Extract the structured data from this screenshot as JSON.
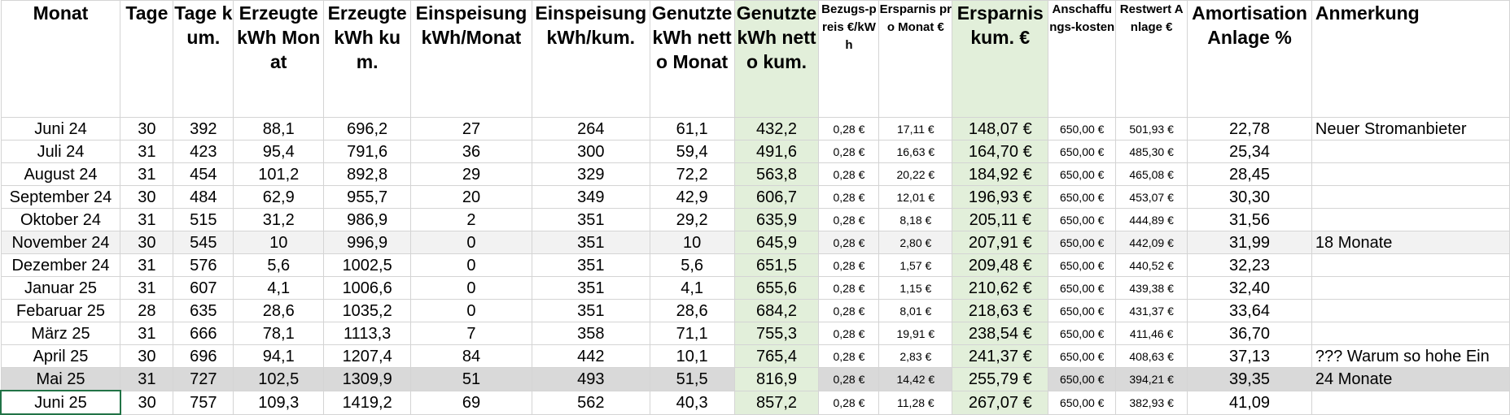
{
  "headers": [
    {
      "label": "Monat",
      "cls": ""
    },
    {
      "label": "Tage",
      "cls": ""
    },
    {
      "label": "Tage kum.",
      "cls": ""
    },
    {
      "label": "Erzeugte kWh Monat",
      "cls": ""
    },
    {
      "label": "Erzeugte kWh kum.",
      "cls": ""
    },
    {
      "label": "Einspeisung kWh/Monat",
      "cls": ""
    },
    {
      "label": "Einspeisung kWh/kum.",
      "cls": ""
    },
    {
      "label": "Genutzte kWh netto Monat",
      "cls": ""
    },
    {
      "label": "Genutzte kWh netto kum.",
      "cls": "green"
    },
    {
      "label": "Bezugs-preis €/kWh",
      "cls": "small"
    },
    {
      "label": "Ersparnis pro Monat €",
      "cls": "small"
    },
    {
      "label": "Ersparnis kum. €",
      "cls": "green"
    },
    {
      "label": "Anschaffungs-kosten",
      "cls": "small"
    },
    {
      "label": "Restwert Anlage €",
      "cls": "small"
    },
    {
      "label": "Amortisation Anlage %",
      "cls": ""
    },
    {
      "label": "Anmerkung",
      "cls": "left"
    }
  ],
  "rows": [
    [
      "Juni 24",
      "30",
      "392",
      "88,1",
      "696,2",
      "27",
      "264",
      "61,1",
      "432,2",
      "0,28 €",
      "17,11 €",
      "148,07 €",
      "650,00 €",
      "501,93 €",
      "22,78",
      "Neuer Stromanbieter"
    ],
    [
      "Juli 24",
      "31",
      "423",
      "95,4",
      "791,6",
      "36",
      "300",
      "59,4",
      "491,6",
      "0,28 €",
      "16,63 €",
      "164,70 €",
      "650,00 €",
      "485,30 €",
      "25,34",
      ""
    ],
    [
      "August 24",
      "31",
      "454",
      "101,2",
      "892,8",
      "29",
      "329",
      "72,2",
      "563,8",
      "0,28 €",
      "20,22 €",
      "184,92 €",
      "650,00 €",
      "465,08 €",
      "28,45",
      ""
    ],
    [
      "September 24",
      "30",
      "484",
      "62,9",
      "955,7",
      "20",
      "349",
      "42,9",
      "606,7",
      "0,28 €",
      "12,01 €",
      "196,93 €",
      "650,00 €",
      "453,07 €",
      "30,30",
      ""
    ],
    [
      "Oktober 24",
      "31",
      "515",
      "31,2",
      "986,9",
      "2",
      "351",
      "29,2",
      "635,9",
      "0,28 €",
      "8,18 €",
      "205,11 €",
      "650,00 €",
      "444,89 €",
      "31,56",
      ""
    ],
    [
      "November 24",
      "30",
      "545",
      "10",
      "996,9",
      "0",
      "351",
      "10",
      "645,9",
      "0,28 €",
      "2,80 €",
      "207,91 €",
      "650,00 €",
      "442,09 €",
      "31,99",
      "18 Monate"
    ],
    [
      "Dezember 24",
      "31",
      "576",
      "5,6",
      "1002,5",
      "0",
      "351",
      "5,6",
      "651,5",
      "0,28 €",
      "1,57 €",
      "209,48 €",
      "650,00 €",
      "440,52 €",
      "32,23",
      ""
    ],
    [
      "Januar 25",
      "31",
      "607",
      "4,1",
      "1006,6",
      "0",
      "351",
      "4,1",
      "655,6",
      "0,28 €",
      "1,15 €",
      "210,62 €",
      "650,00 €",
      "439,38 €",
      "32,40",
      ""
    ],
    [
      "Febaruar 25",
      "28",
      "635",
      "28,6",
      "1035,2",
      "0",
      "351",
      "28,6",
      "684,2",
      "0,28 €",
      "8,01 €",
      "218,63 €",
      "650,00 €",
      "431,37 €",
      "33,64",
      ""
    ],
    [
      "März 25",
      "31",
      "666",
      "78,1",
      "1113,3",
      "7",
      "358",
      "71,1",
      "755,3",
      "0,28 €",
      "19,91 €",
      "238,54 €",
      "650,00 €",
      "411,46 €",
      "36,70",
      ""
    ],
    [
      "April 25",
      "30",
      "696",
      "94,1",
      "1207,4",
      "84",
      "442",
      "10,1",
      "765,4",
      "0,28 €",
      "2,83 €",
      "241,37 €",
      "650,00 €",
      "408,63 €",
      "37,13",
      "??? Warum so hohe Ein"
    ],
    [
      "Mai 25",
      "31",
      "727",
      "102,5",
      "1309,9",
      "51",
      "493",
      "51,5",
      "816,9",
      "0,28 €",
      "14,42 €",
      "255,79 €",
      "650,00 €",
      "394,21 €",
      "39,35",
      "24 Monate"
    ],
    [
      "Juni 25",
      "30",
      "757",
      "109,3",
      "1419,2",
      "69",
      "562",
      "40,3",
      "857,2",
      "0,28 €",
      "11,28 €",
      "267,07 €",
      "650,00 €",
      "382,93 €",
      "41,09",
      ""
    ]
  ]
}
